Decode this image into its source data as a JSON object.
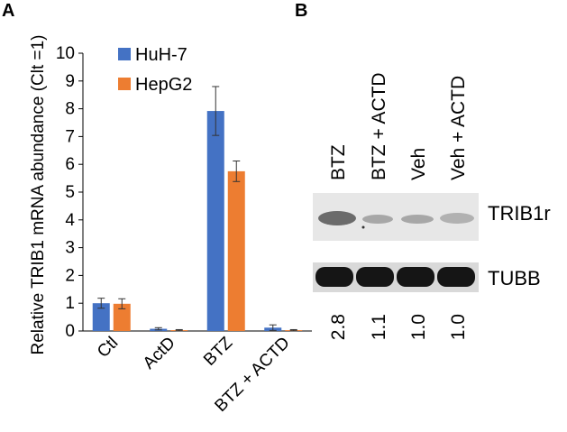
{
  "panels": {
    "a_label": "A",
    "b_label": "B"
  },
  "chart_data": {
    "type": "bar",
    "title": "",
    "xlabel": "",
    "ylabel": "Relative TRIB1 mRNA abundance (Clt =1)",
    "ylim": [
      0,
      10
    ],
    "yticks": [
      0,
      1,
      2,
      3,
      4,
      5,
      6,
      7,
      8,
      9,
      10
    ],
    "categories": [
      "Ctl",
      "ActD",
      "BTZ",
      "BTZ + ACTD"
    ],
    "series": [
      {
        "name": "HuH-7",
        "color": "#4472C4",
        "values": [
          1.0,
          0.08,
          7.92,
          0.12
        ],
        "errors": [
          0.18,
          0.04,
          0.88,
          0.1
        ]
      },
      {
        "name": "HepG2",
        "color": "#ED7D31",
        "values": [
          0.98,
          0.03,
          5.75,
          0.03
        ],
        "errors": [
          0.18,
          0.02,
          0.37,
          0.02
        ]
      }
    ],
    "legend_position": "top-left",
    "grid": false
  },
  "blot": {
    "lanes": [
      "BTZ",
      "BTZ + ACTD",
      "Veh",
      "Veh + ACTD"
    ],
    "rows": [
      "TRIB1r",
      "TUBB"
    ],
    "quantification": [
      "2.8",
      "1.1",
      "1.0",
      "1.0"
    ]
  }
}
